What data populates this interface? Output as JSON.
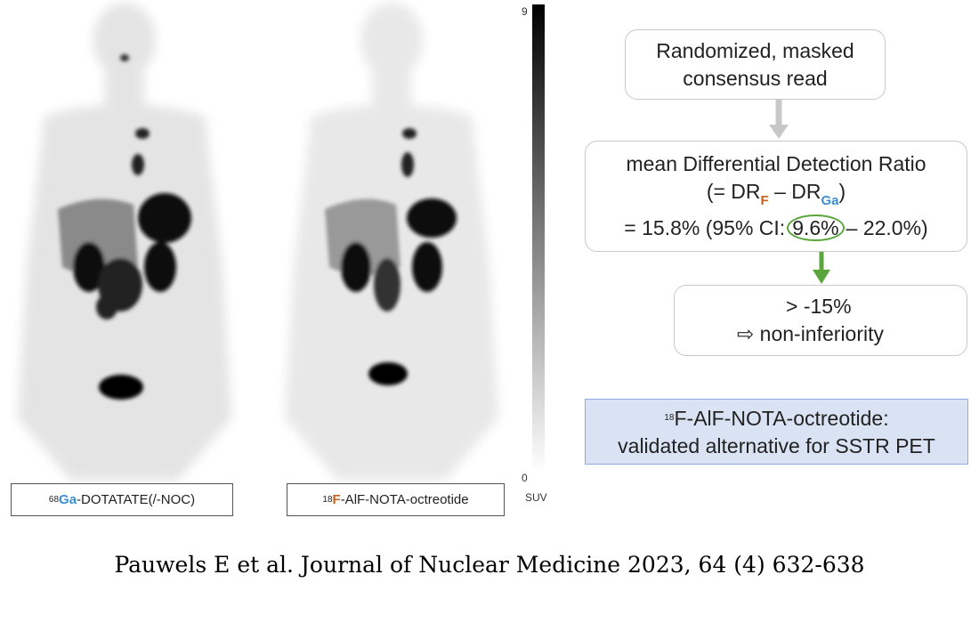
{
  "images": [
    {
      "label": {
        "mass": "68",
        "isotope": "Ga",
        "compound": "-DOTATATE(/-NOC)"
      }
    },
    {
      "label": {
        "mass": "18",
        "isotope": "F",
        "compound": "-AlF-NOTA-octreotide"
      }
    }
  ],
  "colorbar": {
    "max": 9,
    "min": 0,
    "unit": "SUV"
  },
  "flow": {
    "step1": [
      "Randomized, masked",
      "consensus read"
    ],
    "step2": {
      "title": "mean Differential Detection Ratio",
      "formula": {
        "open": "(= DR",
        "sub1": "F",
        "minus": "– DR",
        "sub2": "Ga",
        "close": ")"
      },
      "result": {
        "pre": "= 15.8% (95% CI:",
        "circled": "9.6%",
        "post": "– 22.0%)"
      }
    },
    "step3": [
      "> -15%",
      "⇨ non-inferiority"
    ],
    "conclusion": {
      "mass": "18",
      "line1": "F-AlF-NOTA-octreotide:",
      "line2": "validated alternative for SSTR PET"
    }
  },
  "citation": "Pauwels E et al. Journal of Nuclear Medicine 2023, 64 (4) 632-638"
}
